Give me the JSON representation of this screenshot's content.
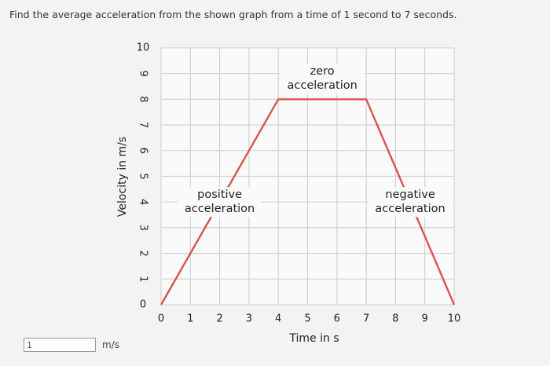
{
  "question": "Find the average acceleration from the shown graph from a time of 1 second to 7 seconds.",
  "answer": {
    "value": "1",
    "unit": "m/s"
  },
  "chart_data": {
    "type": "line",
    "xlabel": "Time in s",
    "ylabel": "Velocity in m/s",
    "xlim": [
      0,
      10
    ],
    "ylim": [
      0,
      10
    ],
    "x_ticks": [
      "0",
      "1",
      "2",
      "3",
      "4",
      "5",
      "6",
      "7",
      "8",
      "9",
      "10"
    ],
    "y_ticks": [
      "0",
      "1",
      "2",
      "3",
      "4",
      "5",
      "6",
      "7",
      "8",
      "9",
      "10"
    ],
    "grid": true,
    "series": [
      {
        "x": [
          0,
          4,
          7,
          10
        ],
        "y": [
          0,
          8,
          8,
          0
        ],
        "color": "#d9534f"
      }
    ],
    "annotations": [
      {
        "text": [
          "zero",
          "acceleration"
        ],
        "x": 5.5,
        "y": 8.8
      },
      {
        "text": [
          "positive",
          "acceleration"
        ],
        "x": 2.0,
        "y": 4.0
      },
      {
        "text": [
          "negative",
          "acceleration"
        ],
        "x": 8.5,
        "y": 4.0
      }
    ]
  }
}
